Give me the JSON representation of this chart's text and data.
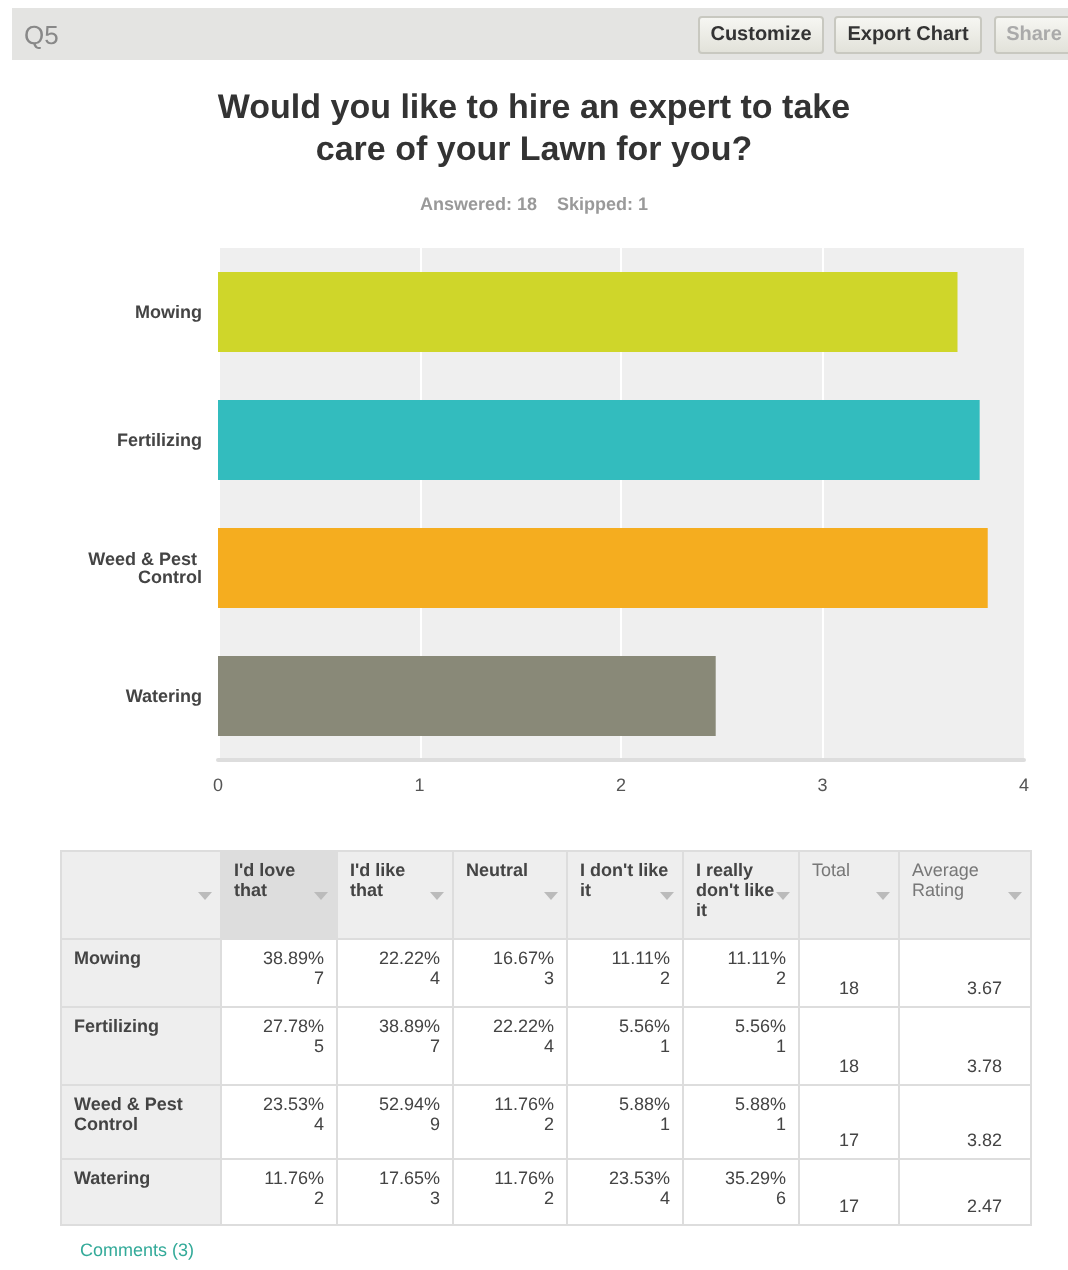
{
  "chart_data": {
    "type": "bar",
    "orientation": "horizontal",
    "title": "Would you like to hire an expert to take care of your Lawn for you?",
    "subtitle": "Answered: 18    Skipped: 1",
    "categories": [
      "Mowing",
      "Fertilizing",
      "Weed & Pest Control",
      "Watering"
    ],
    "values": [
      3.67,
      3.78,
      3.82,
      2.47
    ],
    "colors": [
      "#cfd62a",
      "#33bcbe",
      "#f5ad1f",
      "#898978"
    ],
    "xlim": [
      0,
      4
    ],
    "xticks": [
      0,
      1,
      2,
      3,
      4
    ],
    "grid": "x",
    "annotations": [
      "Q5",
      "Customize",
      "Export Chart",
      "Share",
      "I'd love that",
      "I'd like that",
      "Neutral",
      "I don't like it",
      "I really don't like it",
      "Total",
      "Average Rating",
      "38.89%\n7",
      "22.22%\n4",
      "16.67%\n3",
      "11.11%\n2",
      "11.11%\n2",
      "18",
      "3.67",
      "27.78%\n5",
      "38.89%\n7",
      "22.22%\n4",
      "5.56%\n1",
      "5.56%\n1",
      "18",
      "3.78",
      "23.53%\n4",
      "52.94%\n9",
      "11.76%\n2",
      "5.88%\n1",
      "5.88%\n1",
      "17",
      "3.82",
      "11.76%\n2",
      "17.65%\n3",
      "11.76%\n2",
      "23.53%\n4",
      "35.29%\n6",
      "17",
      "2.47",
      "Comments (3)"
    ]
  }
}
